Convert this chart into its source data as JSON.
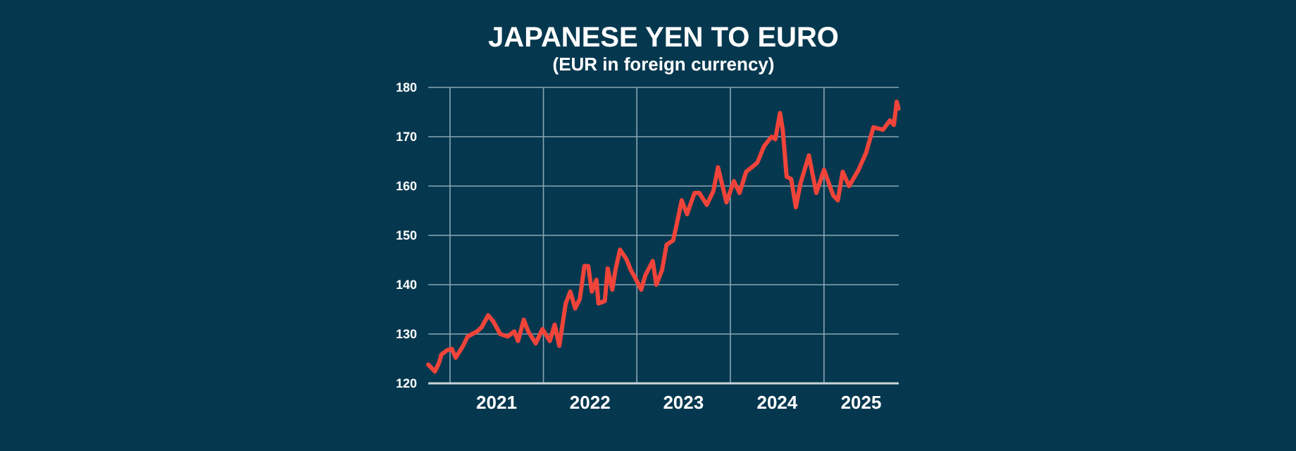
{
  "chart_data": {
    "type": "line",
    "title": "JAPANESE YEN TO EURO",
    "subtitle": "(EUR in foreign currency)",
    "xlim": [
      "2020-10-08",
      "2025-10-20"
    ],
    "xticks": [
      {
        "value": "2021-01-01",
        "label": null
      },
      {
        "value": "2021-07-02",
        "label": "2021"
      },
      {
        "value": "2022-01-01",
        "label": null
      },
      {
        "value": "2022-07-02",
        "label": "2022"
      },
      {
        "value": "2023-01-01",
        "label": null
      },
      {
        "value": "2023-07-02",
        "label": "2023"
      },
      {
        "value": "2024-01-01",
        "label": null
      },
      {
        "value": "2024-07-02",
        "label": "2024"
      },
      {
        "value": "2025-01-01",
        "label": null
      },
      {
        "value": "2025-05-26",
        "label": "2025"
      }
    ],
    "ylim": [
      120,
      180
    ],
    "yticks": [
      120,
      130,
      140,
      150,
      160,
      170,
      180
    ],
    "grid": true,
    "series": [
      {
        "color": "#f0443a",
        "x": [
          "2020-10-08",
          "2020-11-03",
          "2020-11-20",
          "2020-11-28",
          "2020-12-20",
          "2021-01-08",
          "2021-01-23",
          "2021-02-21",
          "2021-03-11",
          "2021-03-29",
          "2021-04-16",
          "2021-05-05",
          "2021-05-30",
          "2021-06-21",
          "2021-07-16",
          "2021-08-14",
          "2021-09-09",
          "2021-09-24",
          "2021-10-16",
          "2021-11-03",
          "2021-12-02",
          "2021-12-28",
          "2022-01-26",
          "2022-02-14",
          "2022-03-04",
          "2022-03-29",
          "2022-04-16",
          "2022-05-05",
          "2022-05-23",
          "2022-06-10",
          "2022-06-25",
          "2022-07-09",
          "2022-07-27",
          "2022-08-04",
          "2022-08-29",
          "2022-09-09",
          "2022-09-27",
          "2022-10-09",
          "2022-10-27",
          "2022-11-21",
          "2022-12-09",
          "2022-12-20",
          "2023-01-18",
          "2023-02-03",
          "2023-03-04",
          "2023-03-18",
          "2023-04-09",
          "2023-04-27",
          "2023-05-23",
          "2023-06-10",
          "2023-06-25",
          "2023-07-16",
          "2023-08-14",
          "2023-09-02",
          "2023-10-01",
          "2023-10-27",
          "2023-11-14",
          "2023-12-17",
          "2024-01-15",
          "2024-02-06",
          "2024-03-03",
          "2024-03-25",
          "2024-04-16",
          "2024-05-12",
          "2024-06-10",
          "2024-06-25",
          "2024-07-13",
          "2024-07-24",
          "2024-08-08",
          "2024-08-26",
          "2024-09-13",
          "2024-10-01",
          "2024-11-03",
          "2024-12-02",
          "2025-01-01",
          "2025-02-06",
          "2025-02-24",
          "2025-03-15",
          "2025-04-09",
          "2025-05-16",
          "2025-06-14",
          "2025-07-13",
          "2025-08-19",
          "2025-09-16",
          "2025-10-01",
          "2025-10-12",
          "2025-10-19"
        ],
        "values": [
          123.8,
          122.4,
          124.3,
          125.8,
          126.7,
          127,
          125.2,
          127.6,
          129.5,
          130,
          130.5,
          131.4,
          133.8,
          132.4,
          130,
          129.5,
          130.5,
          128.6,
          132.9,
          130.5,
          128.1,
          131,
          128.6,
          131.9,
          127.6,
          136.2,
          138.6,
          135.2,
          137.1,
          143.8,
          143.8,
          138.6,
          141,
          136.2,
          136.7,
          143.3,
          139,
          142.9,
          147.1,
          145.2,
          142.9,
          141.9,
          139,
          141.9,
          144.8,
          140,
          142.9,
          148.1,
          149,
          153.3,
          157.1,
          154.3,
          158.6,
          158.6,
          156.2,
          159,
          163.8,
          156.7,
          161,
          158.6,
          162.9,
          163.8,
          164.8,
          168.1,
          170,
          169.5,
          174.8,
          171.4,
          161.9,
          161.4,
          155.7,
          160.5,
          166.2,
          158.6,
          163.3,
          158.1,
          157.1,
          162.9,
          160,
          163.3,
          166.7,
          171.9,
          171.4,
          173.3,
          172.4,
          177.1,
          175.7
        ]
      }
    ]
  }
}
